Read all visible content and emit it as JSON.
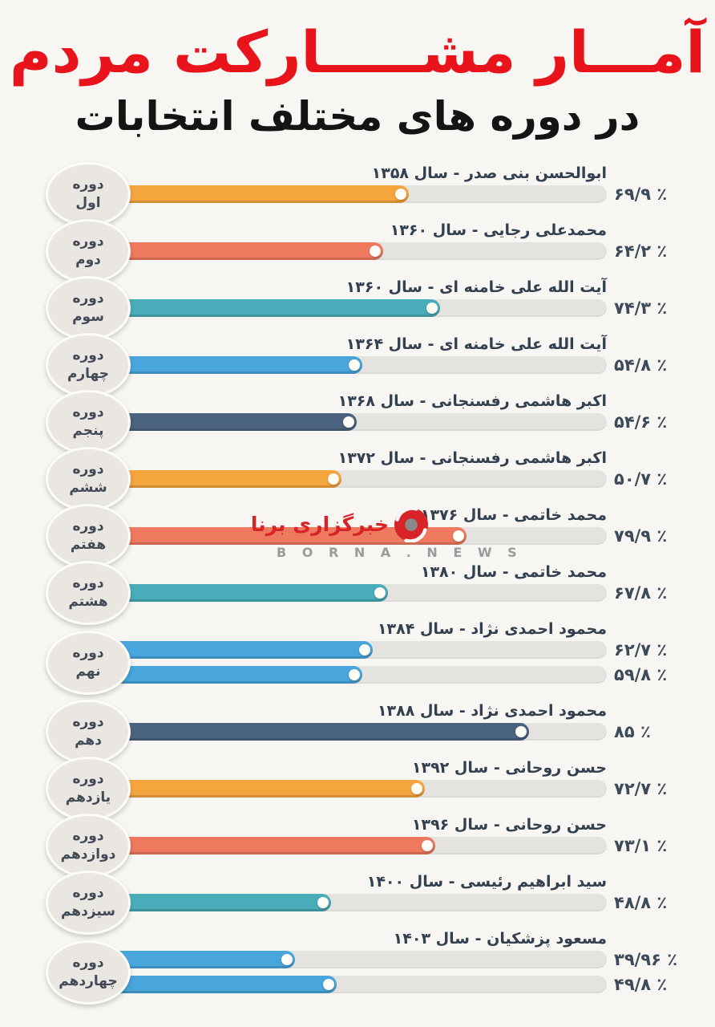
{
  "title": {
    "line1": "آمـــار مشـــــارکت مردم",
    "line2": "در دوره های مختلف انتخابات"
  },
  "watermark": {
    "agency_fa": "خبرگزاری برنا",
    "site_en": "B O R N A . N E W S"
  },
  "colors": {
    "background": "#f8f6f2",
    "title_red": "#e8131b",
    "title_black": "#141414",
    "track_gray": "#e5e3df",
    "bubble_gray": "#eae7e3",
    "label_navy": "#33404f",
    "value_navy": "#3d4a5a",
    "watermark_red": "#d62428",
    "orange": "#f5a53e",
    "salmon": "#ee795f",
    "teal": "#49adb9",
    "blue": "#49a6dc",
    "navy": "#4a6480"
  },
  "chart_data": {
    "type": "bar",
    "orientation": "horizontal",
    "unit": "%",
    "value_range": [
      0,
      100
    ],
    "title": "آمار مشارکت مردم در دوره های مختلف انتخابات",
    "rows": [
      {
        "period_line1": "دوره",
        "period_line2": "اول",
        "label": "ابوالحسن بنی صدر - سال ۱۳۵۸",
        "candidate": "ابوالحسن بنی صدر",
        "year": "۱۳۵۸",
        "values": [
          69.9
        ],
        "display_values": [
          "۶۹/۹ ٪"
        ],
        "color": "#f5a53e",
        "fill_pct": [
          62
        ]
      },
      {
        "period_line1": "دوره",
        "period_line2": "دوم",
        "label": "محمدعلی رجایی - سال ۱۳۶۰",
        "candidate": "محمدعلی رجایی",
        "year": "۱۳۶۰",
        "values": [
          64.2
        ],
        "display_values": [
          "۶۴/۲ ٪"
        ],
        "color": "#ee795f",
        "fill_pct": [
          57
        ]
      },
      {
        "period_line1": "دوره",
        "period_line2": "سوم",
        "label": "آیت الله علی خامنه ای - سال ۱۳۶۰",
        "candidate": "آیت الله علی خامنه ای",
        "year": "۱۳۶۰",
        "values": [
          74.3
        ],
        "display_values": [
          "۷۴/۳ ٪"
        ],
        "color": "#49adb9",
        "fill_pct": [
          68
        ]
      },
      {
        "period_line1": "دوره",
        "period_line2": "چهارم",
        "label": "آیت الله علی خامنه ای - سال ۱۳۶۴",
        "candidate": "آیت الله علی خامنه ای",
        "year": "۱۳۶۴",
        "values": [
          54.8
        ],
        "display_values": [
          "۵۴/۸ ٪"
        ],
        "color": "#49a6dc",
        "fill_pct": [
          53
        ]
      },
      {
        "period_line1": "دوره",
        "period_line2": "پنجم",
        "label": "اکبر هاشمی رفسنجانی - سال ۱۳۶۸",
        "candidate": "اکبر هاشمی رفسنجانی",
        "year": "۱۳۶۸",
        "values": [
          54.6
        ],
        "display_values": [
          "۵۴/۶ ٪"
        ],
        "color": "#4a6480",
        "fill_pct": [
          52
        ]
      },
      {
        "period_line1": "دوره",
        "period_line2": "ششم",
        "label": "اکبر هاشمی رفسنجانی - سال ۱۳۷۲",
        "candidate": "اکبر هاشمی رفسنجانی",
        "year": "۱۳۷۲",
        "values": [
          50.7
        ],
        "display_values": [
          "۵۰/۷ ٪"
        ],
        "color": "#f5a53e",
        "fill_pct": [
          49
        ]
      },
      {
        "period_line1": "دوره",
        "period_line2": "هفتم",
        "label": "محمد خاتمی - سال ۱۳۷۶",
        "candidate": "محمد خاتمی",
        "year": "۱۳۷۶",
        "values": [
          79.9
        ],
        "display_values": [
          "۷۹/۹ ٪"
        ],
        "color": "#ee795f",
        "fill_pct": [
          73
        ]
      },
      {
        "period_line1": "دوره",
        "period_line2": "هشتم",
        "label": "محمد خاتمی - سال ۱۳۸۰",
        "candidate": "محمد خاتمی",
        "year": "۱۳۸۰",
        "values": [
          67.8
        ],
        "display_values": [
          "۶۷/۸ ٪"
        ],
        "color": "#49adb9",
        "fill_pct": [
          58
        ]
      },
      {
        "period_line1": "دوره",
        "period_line2": "نهم",
        "label": "محمود احمدی نژاد - سال ۱۳۸۴",
        "candidate": "محمود احمدی نژاد",
        "year": "۱۳۸۴",
        "values": [
          62.7,
          59.8
        ],
        "display_values": [
          "۶۲/۷ ٪",
          "۵۹/۸ ٪"
        ],
        "color": "#49a6dc",
        "fill_pct": [
          55,
          53
        ]
      },
      {
        "period_line1": "دوره",
        "period_line2": "دهم",
        "label": "محمود احمدی نژاد - سال ۱۳۸۸",
        "candidate": "محمود احمدی نژاد",
        "year": "۱۳۸۸",
        "values": [
          85
        ],
        "display_values": [
          "۸۵ ٪"
        ],
        "color": "#4a6480",
        "fill_pct": [
          85
        ]
      },
      {
        "period_line1": "دوره",
        "period_line2": "یازدهم",
        "label": "حسن روحانی - سال ۱۳۹۲",
        "candidate": "حسن روحانی",
        "year": "۱۳۹۲",
        "values": [
          72.7
        ],
        "display_values": [
          "۷۲/۷ ٪"
        ],
        "color": "#f5a53e",
        "fill_pct": [
          65
        ]
      },
      {
        "period_line1": "دوره",
        "period_line2": "دوازدهم",
        "label": "حسن روحانی - سال ۱۳۹۶",
        "candidate": "حسن روحانی",
        "year": "۱۳۹۶",
        "values": [
          73.1
        ],
        "display_values": [
          "۷۳/۱ ٪"
        ],
        "color": "#ee795f",
        "fill_pct": [
          67
        ]
      },
      {
        "period_line1": "دوره",
        "period_line2": "سیزدهم",
        "label": "سید ابراهیم رئیسی - سال ۱۴۰۰",
        "candidate": "سید ابراهیم رئیسی",
        "year": "۱۴۰۰",
        "values": [
          48.8
        ],
        "display_values": [
          "۴۸/۸ ٪"
        ],
        "color": "#49adb9",
        "fill_pct": [
          47
        ]
      },
      {
        "period_line1": "دوره",
        "period_line2": "چهاردهم",
        "label": "مسعود پزشکیان - سال ۱۴۰۳",
        "candidate": "مسعود پزشکیان",
        "year": "۱۴۰۳",
        "values": [
          39.96,
          49.8
        ],
        "display_values": [
          "۳۹/۹۶ ٪",
          "۴۹/۸ ٪"
        ],
        "color": "#49a6dc",
        "fill_pct": [
          40,
          48
        ]
      }
    ]
  }
}
